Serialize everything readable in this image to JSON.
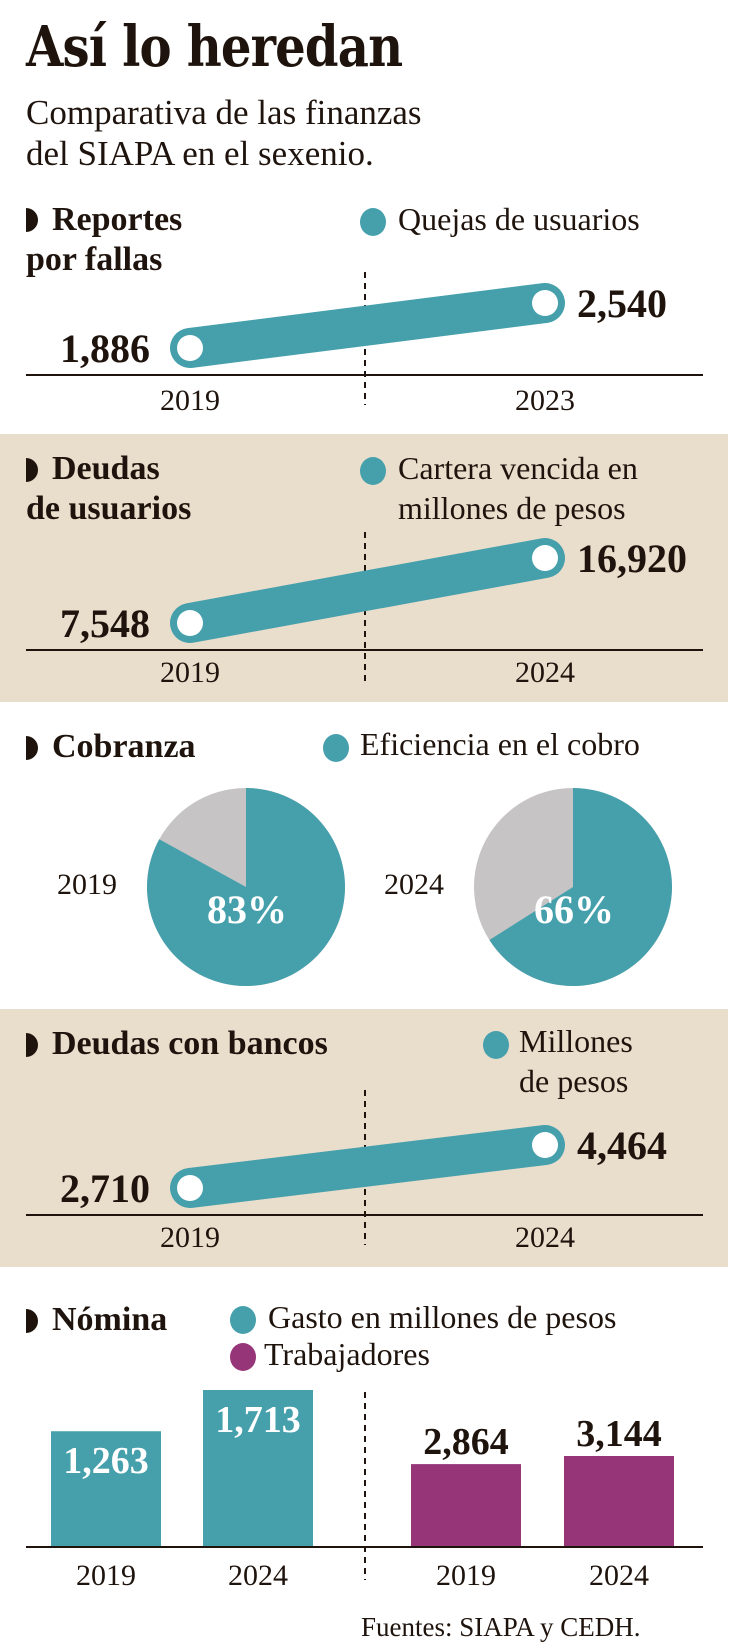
{
  "header": {
    "title": "Así lo heredan",
    "subtitle_line1": "Comparativa de las finanzas",
    "subtitle_line2": "del SIAPA en el sexenio."
  },
  "colors": {
    "teal": "#45a0ac",
    "purple": "#963578",
    "gray": "#c6c4c4",
    "band": "#e9ddcc",
    "text": "#1f140d"
  },
  "icons": {
    "section_bullet": "half-circle-bullet-icon",
    "legend_marker": "circle-dot-icon"
  },
  "chart_data": [
    {
      "type": "line",
      "id": "reportes",
      "title_line1": "Reportes",
      "title_line2": "por fallas",
      "legend_line1": "Quejas de usuarios",
      "legend_line2": "",
      "categories": [
        "2019",
        "2023"
      ],
      "values": [
        1886,
        2540
      ],
      "labels": [
        "1,886",
        "2,540"
      ]
    },
    {
      "type": "line",
      "id": "deudas-usuarios",
      "title_line1": "Deudas",
      "title_line2": "de usuarios",
      "legend_line1": "Cartera vencida en",
      "legend_line2": "millones de pesos",
      "categories": [
        "2019",
        "2024"
      ],
      "values": [
        7548,
        16920
      ],
      "labels": [
        "7,548",
        "16,920"
      ]
    },
    {
      "type": "pie",
      "id": "cobranza",
      "title_line1": "Cobranza",
      "legend_line1": "Eficiencia en el cobro",
      "pies": [
        {
          "year": "2019",
          "value": 83,
          "label": "83%"
        },
        {
          "year": "2024",
          "value": 66,
          "label": "66%"
        }
      ]
    },
    {
      "type": "line",
      "id": "deudas-bancos",
      "title_line1": "Deudas con bancos",
      "legend_line1": "Millones",
      "legend_line2": "de pesos",
      "categories": [
        "2019",
        "2024"
      ],
      "values": [
        2710,
        4464
      ],
      "labels": [
        "2,710",
        "4,464"
      ]
    },
    {
      "type": "bar",
      "id": "nomina",
      "title_line1": "Nómina",
      "series": [
        {
          "name": "Gasto en millones de pesos",
          "categories": [
            "2019",
            "2024"
          ],
          "values": [
            1263,
            1713
          ],
          "labels": [
            "1,263",
            "1,713"
          ]
        },
        {
          "name": "Trabajadores",
          "categories": [
            "2019",
            "2024"
          ],
          "values": [
            2864,
            3144
          ],
          "labels": [
            "2,864",
            "3,144"
          ]
        }
      ]
    }
  ],
  "footer": {
    "source": "Fuentes: SIAPA y CEDH."
  }
}
